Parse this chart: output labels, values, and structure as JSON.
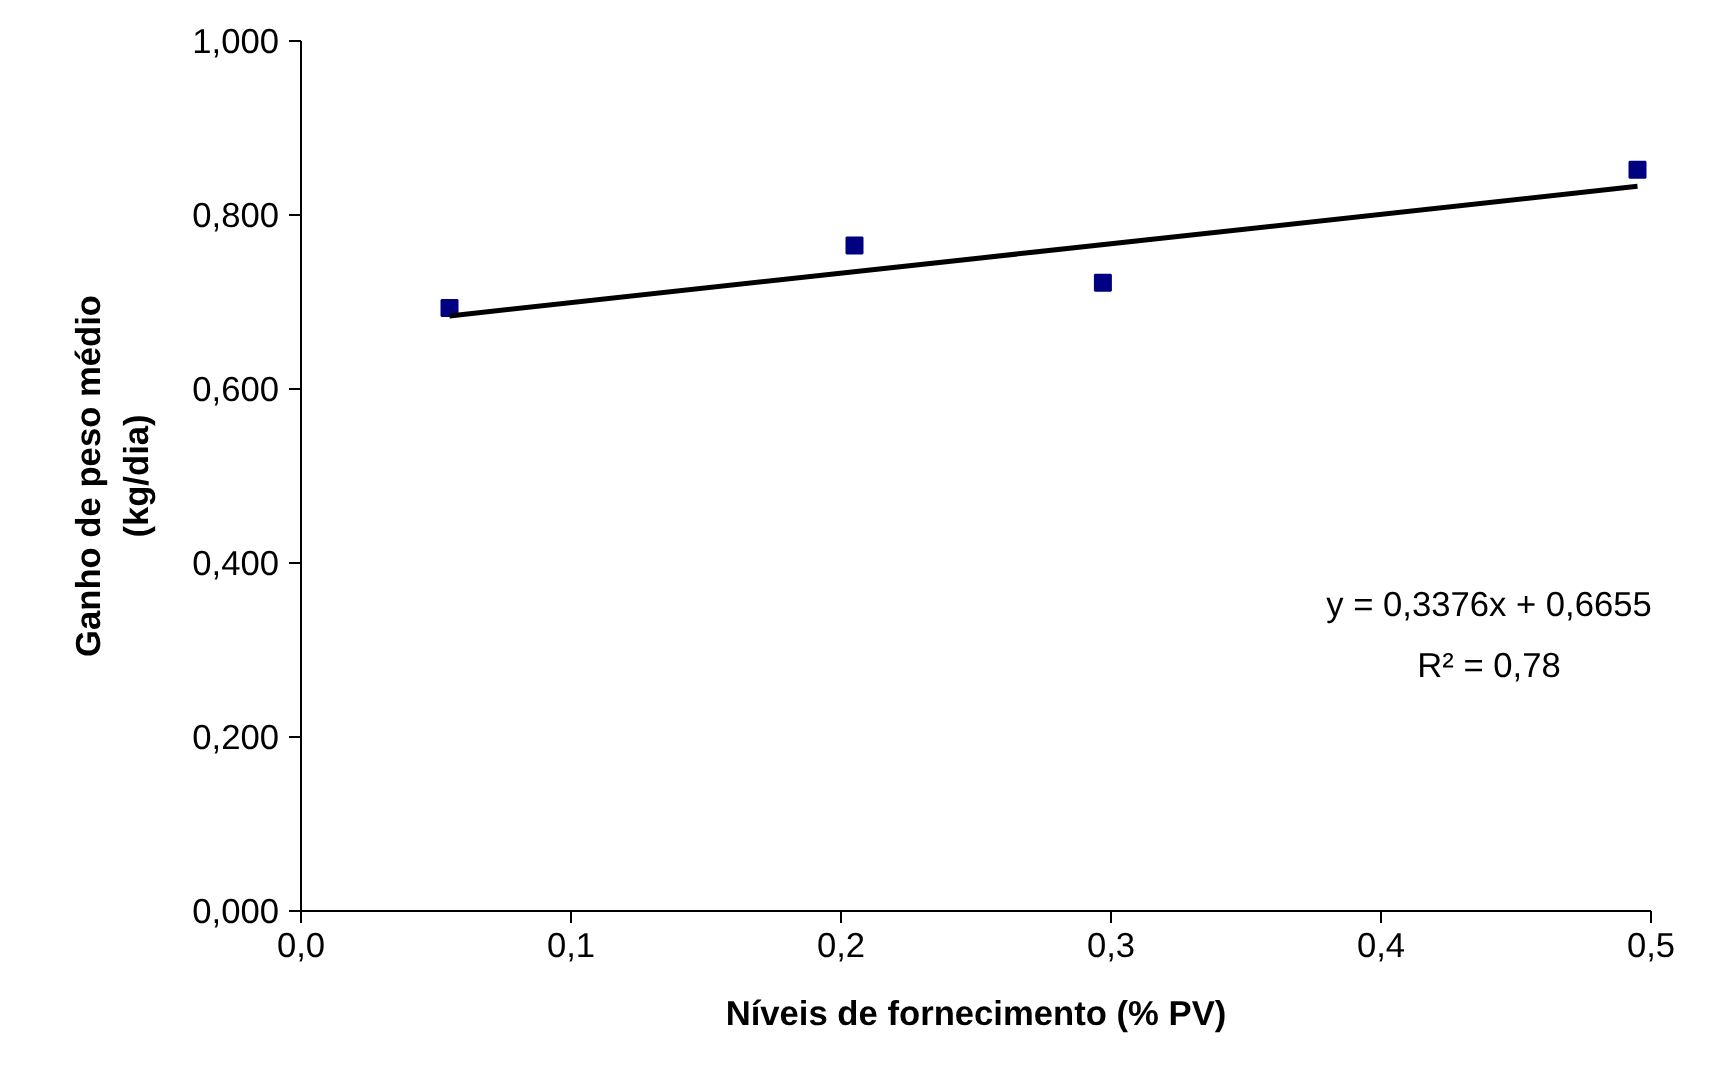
{
  "chart_data": {
    "type": "scatter",
    "xlabel": "Níveis de fornecimento (% PV)",
    "ylabel": "Ganho de peso médio\n(kg/dia)",
    "series": [
      {
        "color": "#000080",
        "marker": "square",
        "x": [
          0.055,
          0.205,
          0.297,
          0.495
        ],
        "values": [
          0.693,
          0.765,
          0.722,
          0.852
        ]
      },
      {
        "type": "line",
        "color": "#000000",
        "marker": "none",
        "line_style": "solid",
        "x": [
          0.055,
          0.495
        ],
        "values": [
          0.684,
          0.833
        ]
      }
    ],
    "xlim": [
      0,
      0.5
    ],
    "ylim": [
      0,
      1
    ],
    "xticks": [
      {
        "value": 0,
        "label": "0,0"
      },
      {
        "value": 0.1,
        "label": "0,1"
      },
      {
        "value": 0.2,
        "label": "0,2"
      },
      {
        "value": 0.3,
        "label": "0,3"
      },
      {
        "value": 0.4,
        "label": "0,4"
      },
      {
        "value": 0.5,
        "label": "0,5"
      }
    ],
    "yticks": [
      {
        "value": 0,
        "label": "0,000"
      },
      {
        "value": 0.2,
        "label": "0,200"
      },
      {
        "value": 0.4,
        "label": "0,400"
      },
      {
        "value": 0.6,
        "label": "0,600"
      },
      {
        "value": 0.8,
        "label": "0,800"
      },
      {
        "value": 1,
        "label": "1,000"
      }
    ],
    "annotations": [
      "y = 0,3376x + 0,6655",
      "R² = 0,78"
    ],
    "grid": false
  }
}
